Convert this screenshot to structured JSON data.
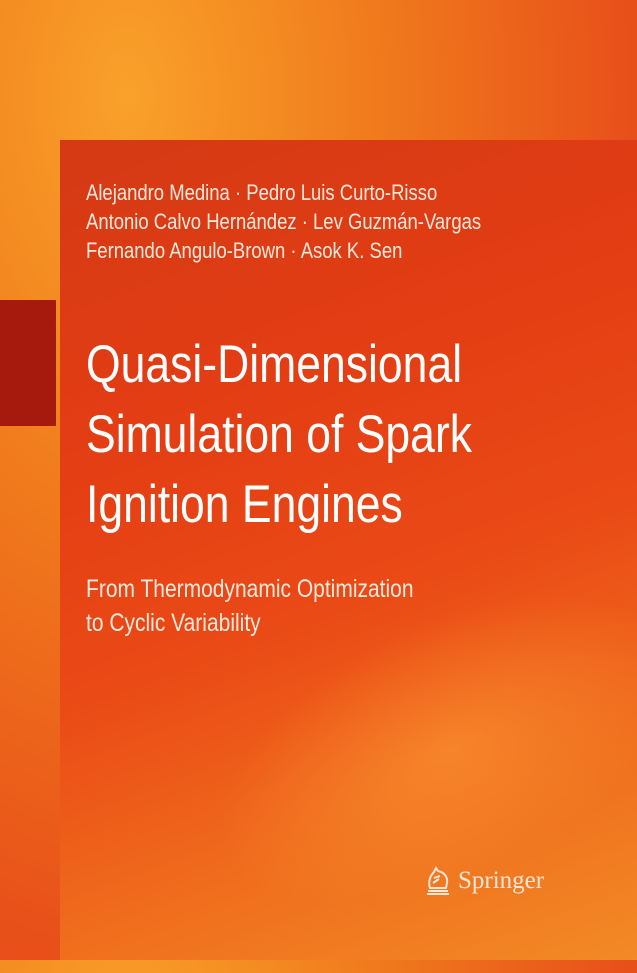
{
  "cover": {
    "authors": [
      "Alejandro Medina · Pedro Luis Curto-Risso",
      "Antonio Calvo Hernández · Lev Guzmán-Vargas",
      "Fernando Angulo-Brown · Asok K. Sen"
    ],
    "title_lines": [
      "Quasi-Dimensional",
      "Simulation of Spark",
      "Ignition Engines"
    ],
    "subtitle_lines": [
      "From Thermodynamic Optimization",
      "to Cyclic Variability"
    ],
    "publisher": "Springer",
    "publisher_icon": "springer-horse-icon",
    "colors": {
      "background": "#f07a1c",
      "panel": "#e33d14",
      "accent_block": "#a51a0c"
    }
  }
}
